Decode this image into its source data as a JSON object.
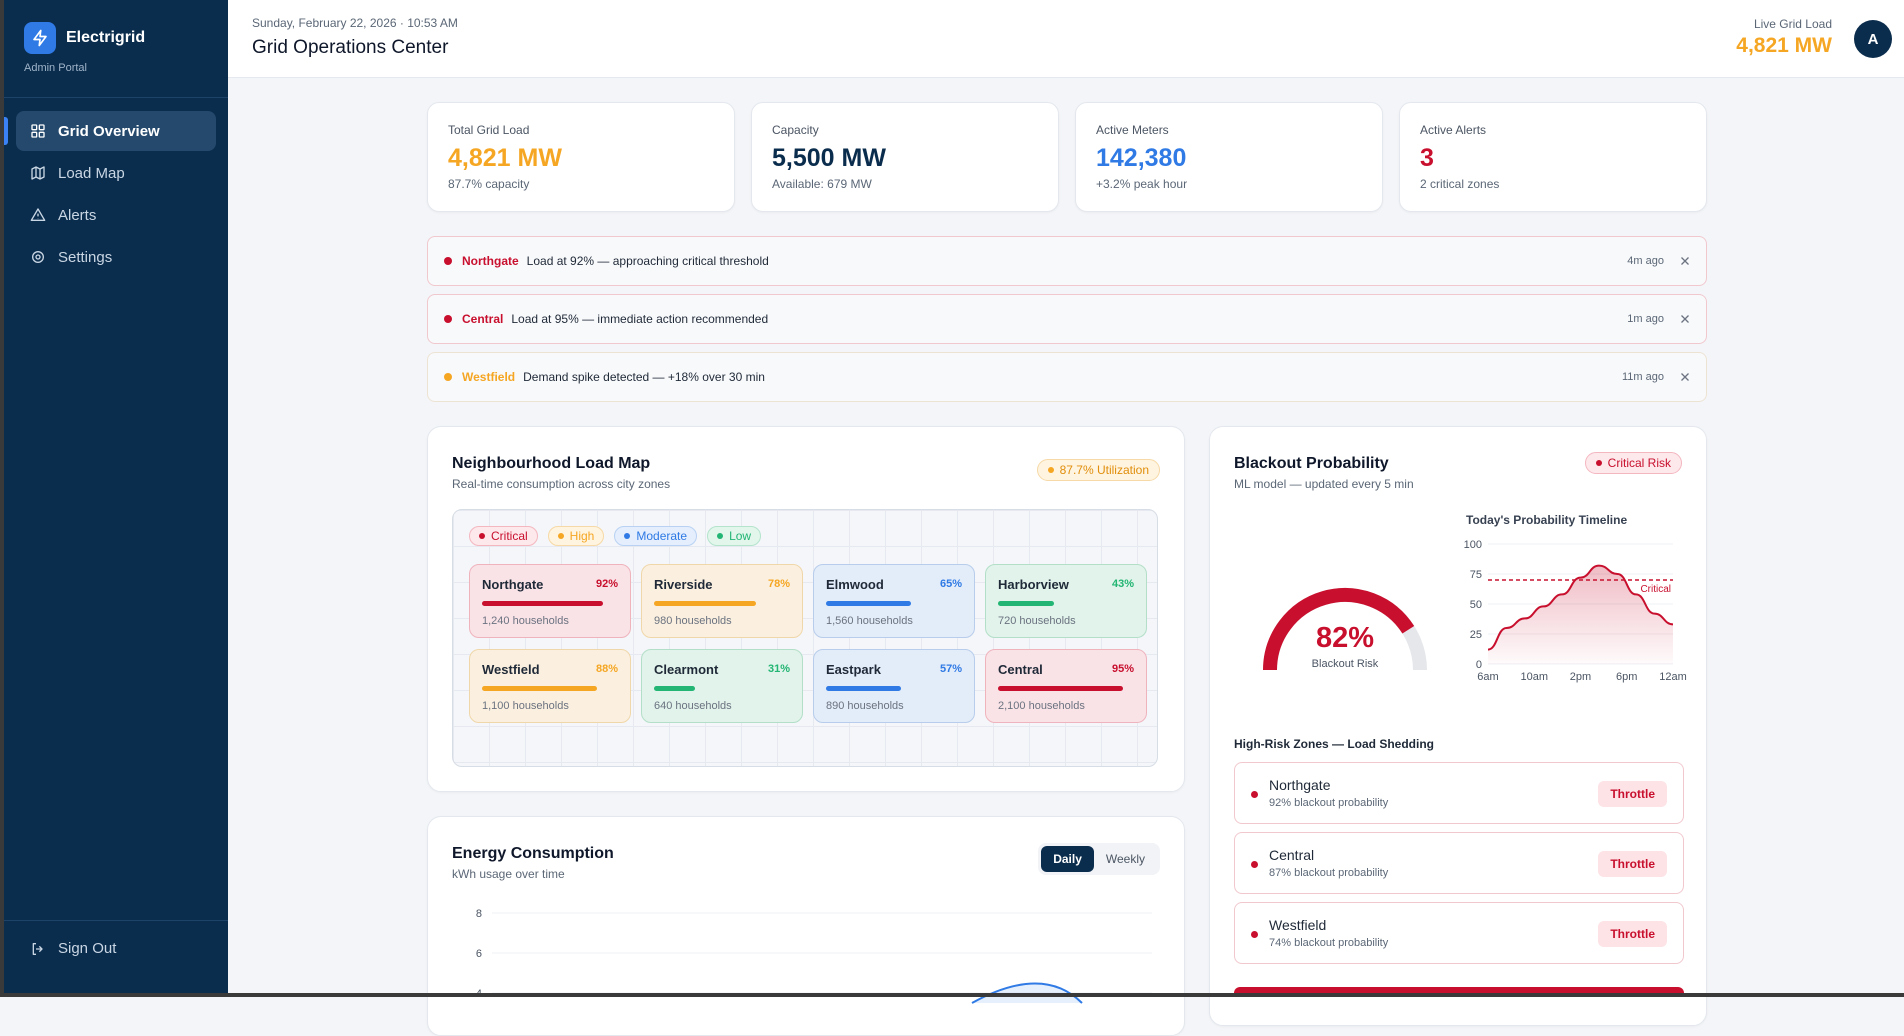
{
  "brand": {
    "name": "Electrigrid",
    "subtitle": "Admin Portal"
  },
  "nav": [
    {
      "label": "Grid Overview",
      "icon": "grid-icon",
      "active": true
    },
    {
      "label": "Load Map",
      "icon": "map-icon",
      "active": false
    },
    {
      "label": "Alerts",
      "icon": "alert-triangle-icon",
      "active": false
    },
    {
      "label": "Settings",
      "icon": "settings-icon",
      "active": false
    }
  ],
  "sign_out": "Sign Out",
  "header": {
    "datetime": "Sunday, February 22, 2026 · 10:53 AM",
    "title": "Grid Operations Center",
    "live_label": "Live Grid Load",
    "live_value": "4,821 MW",
    "avatar": "A"
  },
  "kpis": [
    {
      "label": "Total Grid Load",
      "value": "4,821 MW",
      "sub": "87.7% capacity",
      "color": "#f5a623"
    },
    {
      "label": "Capacity",
      "value": "5,500 MW",
      "sub": "Available: 679 MW",
      "color": "#0b2d4d"
    },
    {
      "label": "Active Meters",
      "value": "142,380",
      "sub": "+3.2% peak hour",
      "color": "#2f7ae5"
    },
    {
      "label": "Active Alerts",
      "value": "3",
      "sub": "2 critical zones",
      "color": "#c8102e"
    }
  ],
  "alerts": [
    {
      "zone": "Northgate",
      "message": "Load at 92% — approaching critical threshold",
      "time": "4m ago",
      "color": "#c8102e"
    },
    {
      "zone": "Central",
      "message": "Load at 95% — immediate action recommended",
      "time": "1m ago",
      "color": "#c8102e"
    },
    {
      "zone": "Westfield",
      "message": "Demand spike detected — +18% over 30 min",
      "time": "11m ago",
      "color": "#f5a623"
    }
  ],
  "load_map": {
    "title": "Neighbourhood Load Map",
    "subtitle": "Real-time consumption across city zones",
    "utilization": "87.7% Utilization",
    "legend": [
      {
        "label": "Critical",
        "color": "#c8102e",
        "bg": "#fde8eb",
        "border": "#f4b7c0"
      },
      {
        "label": "High",
        "color": "#f5a623",
        "bg": "#fff4e0",
        "border": "#f6d9a6"
      },
      {
        "label": "Moderate",
        "color": "#2f7ae5",
        "bg": "#e4eefc",
        "border": "#b9d2f4"
      },
      {
        "label": "Low",
        "color": "#22b573",
        "bg": "#e2f6ec",
        "border": "#b4e4cc"
      }
    ],
    "zones": [
      {
        "name": "Northgate",
        "pct": "92%",
        "load": 0.92,
        "households": "1,240 households",
        "level": "critical"
      },
      {
        "name": "Riverside",
        "pct": "78%",
        "load": 0.78,
        "households": "980 households",
        "level": "high"
      },
      {
        "name": "Elmwood",
        "pct": "65%",
        "load": 0.65,
        "households": "1,560 households",
        "level": "moderate"
      },
      {
        "name": "Harborview",
        "pct": "43%",
        "load": 0.43,
        "households": "720 households",
        "level": "low"
      },
      {
        "name": "Westfield",
        "pct": "88%",
        "load": 0.88,
        "households": "1,100 households",
        "level": "high"
      },
      {
        "name": "Clearmont",
        "pct": "31%",
        "load": 0.31,
        "households": "640 households",
        "level": "low"
      },
      {
        "name": "Eastpark",
        "pct": "57%",
        "load": 0.57,
        "households": "890 households",
        "level": "moderate"
      },
      {
        "name": "Central",
        "pct": "95%",
        "load": 0.95,
        "households": "2,100 households",
        "level": "critical"
      }
    ]
  },
  "blackout": {
    "title": "Blackout Probability",
    "subtitle": "ML model — updated every 5 min",
    "risk_badge": "Critical Risk",
    "gauge_value": "82%",
    "gauge_fraction": 0.82,
    "gauge_label": "Blackout Risk",
    "timeline_title": "Today's Probability Timeline",
    "high_risk_title": "High-Risk Zones — Load Shedding",
    "high_risk": [
      {
        "name": "Northgate",
        "sub": "92% blackout probability",
        "action": "Throttle"
      },
      {
        "name": "Central",
        "sub": "87% blackout probability",
        "action": "Throttle"
      },
      {
        "name": "Westfield",
        "sub": "74% blackout probability",
        "action": "Throttle"
      }
    ]
  },
  "chart_data": [
    {
      "type": "area",
      "title": "Today's Probability Timeline",
      "x_ticks": [
        "6am",
        "10am",
        "2pm",
        "6pm",
        "12am"
      ],
      "y_ticks": [
        "0",
        "25",
        "50",
        "75",
        "100"
      ],
      "ylim": [
        0,
        100
      ],
      "x": [
        0,
        1,
        2,
        3,
        4,
        5,
        6,
        7,
        8,
        9,
        10
      ],
      "values": [
        12,
        30,
        38,
        48,
        58,
        72,
        82,
        75,
        58,
        42,
        33
      ],
      "threshold": {
        "value": 70,
        "label": "Critical"
      },
      "colors": {
        "line": "#c8102e"
      }
    },
    {
      "type": "line",
      "title": "Energy Consumption",
      "subtitle": "kWh usage over time",
      "y_ticks": [
        "8",
        "6",
        "4"
      ],
      "ylim": [
        4,
        8
      ],
      "toggle": [
        "Daily",
        "Weekly"
      ],
      "toggle_active": "Daily"
    }
  ],
  "energy": {
    "title": "Energy Consumption",
    "subtitle": "kWh usage over time",
    "daily": "Daily",
    "weekly": "Weekly"
  }
}
